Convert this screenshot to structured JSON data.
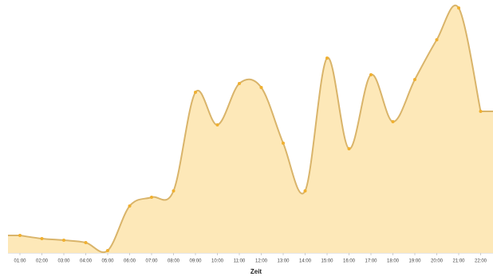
{
  "chart_data": {
    "type": "area",
    "x_label": "Zeit",
    "categories": [
      "01:00",
      "02:00",
      "03:00",
      "04:00",
      "05:00",
      "06:00",
      "07:00",
      "08:00",
      "09:00",
      "10:00",
      "11:00",
      "12:00",
      "13:00",
      "14:00",
      "15:00",
      "16:00",
      "17:00",
      "18:00",
      "19:00",
      "20:00",
      "21:00",
      "22:00"
    ],
    "values": [
      22,
      18,
      16,
      13,
      3,
      59,
      70,
      78,
      202,
      161,
      213,
      208,
      138,
      78,
      245,
      131,
      224,
      165,
      218,
      268,
      308,
      178
    ],
    "ylim": [
      0,
      313
    ],
    "line_color": "#d9b46a",
    "fill_color": "#fde8b8",
    "point_color": "#f0b030"
  }
}
